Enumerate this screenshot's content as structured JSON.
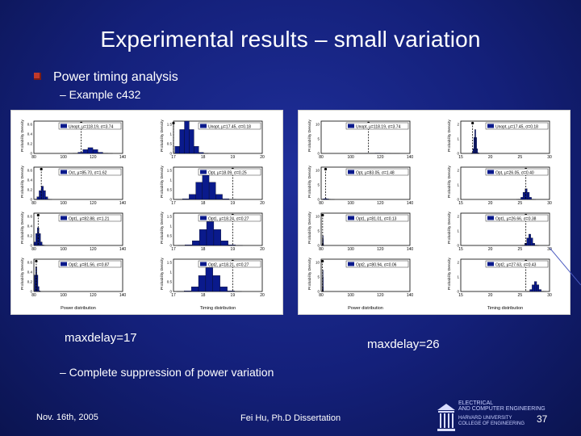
{
  "slide": {
    "title": "Experimental results – small variation",
    "bullet": "Power timing analysis",
    "sub_bullet_1": "–  Example c432",
    "sub_bullet_2": "–  Complete suppression of power variation",
    "caption_left": "maxdelay=17",
    "caption_right": "maxdelay=26"
  },
  "footer": {
    "date": "Nov. 16th, 2005",
    "author": "Fei Hu, Ph.D Dissertation",
    "page": "37"
  },
  "logo": {
    "line1": "ELECTRICAL",
    "line2": "AND COMPUTER ENGINEERING",
    "line3": "HARVARD UNIVERSITY",
    "line4": "COLLEGE OF ENGINEERING"
  },
  "colors": {
    "bar": "#0a1a8c",
    "slide_bg": "#16227f",
    "bullet": "#c0392b"
  },
  "chart_data": [
    {
      "type": "bar",
      "group": "maxdelay=17",
      "column": "power",
      "xlabel": "Power distribution",
      "ylabel": "Probability Density",
      "xlim": [
        80,
        140
      ],
      "xticks": [
        80,
        100,
        120,
        140
      ],
      "rows": [
        {
          "legend": "Unopt, μ=118.19, σ=3.74",
          "ylim": [
            0,
            0.6
          ],
          "yticks": [
            "0.6",
            "0.4",
            "0.2",
            "0"
          ],
          "mu": 118.19,
          "sigma": 3.74,
          "marker": 112
        },
        {
          "legend": "Oct, μ=85.70, σ=1.62",
          "ylim": [
            0,
            0.6
          ],
          "yticks": [
            "0.6",
            "0.4",
            "0.2",
            "0"
          ],
          "mu": 85.7,
          "sigma": 1.62,
          "marker": 85
        },
        {
          "legend": "Opt1, μ=82.88, σ=1.21",
          "ylim": [
            0,
            0.6
          ],
          "yticks": [
            "0.6",
            "0.4",
            "0.2",
            "0"
          ],
          "mu": 82.88,
          "sigma": 1.21,
          "marker": 82.9
        },
        {
          "legend": "Opt2, μ=81.56, σ=0.87",
          "ylim": [
            0,
            0.6
          ],
          "yticks": [
            "0.6",
            "0.4",
            "0.2",
            "0"
          ],
          "mu": 81.56,
          "sigma": 0.87,
          "marker": 81.6
        }
      ]
    },
    {
      "type": "bar",
      "group": "maxdelay=17",
      "column": "timing",
      "xlabel": "Timing distribution",
      "ylabel": "Probability Density",
      "xlim": [
        17,
        20
      ],
      "xticks": [
        17,
        18,
        19,
        20
      ],
      "rows": [
        {
          "legend": "Unopt, μ=17.45, σ=0.18",
          "ylim": [
            0,
            2
          ],
          "yticks": [
            "1.5",
            "1",
            "0.5",
            "0"
          ],
          "mu": 17.45,
          "sigma": 0.18,
          "marker": 17.0
        },
        {
          "legend": "Opt, μ=18.09, σ=0.25",
          "ylim": [
            0,
            2
          ],
          "yticks": [
            "1.5",
            "1",
            "0.5",
            "0"
          ],
          "mu": 18.09,
          "sigma": 0.25,
          "marker": 19.0
        },
        {
          "legend": "Opt1, μ=18.24, σ=0.27",
          "ylim": [
            0,
            2
          ],
          "yticks": [
            "1.5",
            "1",
            "0.5",
            "0"
          ],
          "mu": 18.24,
          "sigma": 0.27,
          "marker": 19.0
        },
        {
          "legend": "Opt2, μ=18.21, σ=0.27",
          "ylim": [
            0,
            2
          ],
          "yticks": [
            "1.5",
            "1",
            "0.5",
            "0"
          ],
          "mu": 18.21,
          "sigma": 0.27,
          "marker": 19.0
        }
      ]
    },
    {
      "type": "bar",
      "group": "maxdelay=26",
      "column": "power",
      "xlabel": "Power distribution",
      "ylabel": "Probability Density",
      "xlim": [
        80,
        140
      ],
      "xticks": [
        80,
        100,
        120,
        140
      ],
      "rows": [
        {
          "legend": "Unopt, μ=118.19, σ=3.74",
          "ylim": [
            0,
            10
          ],
          "yticks": [
            "10",
            "5",
            "0"
          ],
          "mu": 118.19,
          "sigma": 3.74,
          "marker": 112
        },
        {
          "legend": "Opt, μ=83.05, σ=1.48",
          "ylim": [
            0,
            10
          ],
          "yticks": [
            "10",
            "5",
            "0"
          ],
          "mu": 83.05,
          "sigma": 1.48,
          "marker": 83
        },
        {
          "legend": "Opt1, μ=81.01, σ=0.13",
          "ylim": [
            0,
            10
          ],
          "yticks": [
            "10",
            "5",
            "0"
          ],
          "mu": 81.01,
          "sigma": 0.13,
          "marker": 81
        },
        {
          "legend": "Opt2, μ=80.94, σ=0.06",
          "ylim": [
            0,
            10
          ],
          "yticks": [
            "10",
            "5",
            "0"
          ],
          "mu": 80.94,
          "sigma": 0.06,
          "marker": 80.9
        }
      ]
    },
    {
      "type": "bar",
      "group": "maxdelay=26",
      "column": "timing",
      "xlabel": "Timing distribution",
      "ylabel": "Probability Density",
      "xlim": [
        15,
        30
      ],
      "xticks": [
        15,
        20,
        25,
        30
      ],
      "rows": [
        {
          "legend": "Unopt, μ=17.45, σ=0.18",
          "ylim": [
            0,
            3
          ],
          "yticks": [
            "2",
            "1",
            "0"
          ],
          "mu": 17.45,
          "sigma": 0.18,
          "marker": 17.0
        },
        {
          "legend": "Opt, μ=26.05, σ=0.40",
          "ylim": [
            0,
            3
          ],
          "yticks": [
            "2",
            "1",
            "0"
          ],
          "mu": 26.05,
          "sigma": 0.4,
          "marker": 26.0
        },
        {
          "legend": "Opt1, μ=26.66, σ=0.38",
          "ylim": [
            0,
            3
          ],
          "yticks": [
            "2",
            "1",
            "0"
          ],
          "mu": 26.66,
          "sigma": 0.38,
          "marker": 26.0
        },
        {
          "legend": "Opt2, μ=27.63, σ=0.43",
          "ylim": [
            0,
            3
          ],
          "yticks": [
            "2",
            "1",
            "0"
          ],
          "mu": 27.63,
          "sigma": 0.43,
          "marker": 26.0
        }
      ]
    }
  ]
}
